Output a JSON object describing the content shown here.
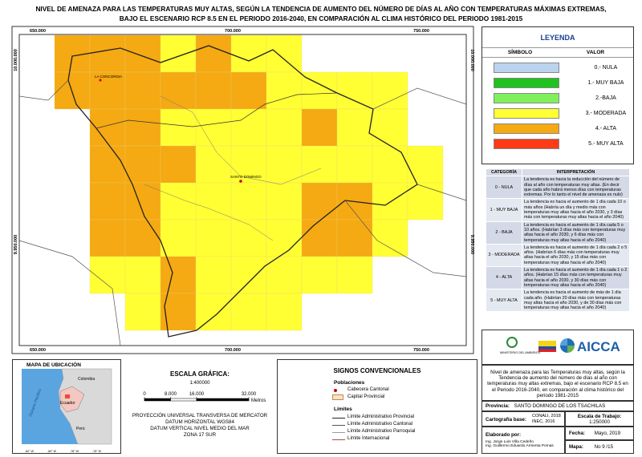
{
  "header": {
    "title_lines": [
      "NIVEL DE AMENAZA PARA LAS TEMPERATURAS MUY ALTAS, SEGÚN LA TENDENCIA DE AUMENTO DEL NÚMERO DE DÍAS AL AÑO CON TEMPERATURAS MÁXIMAS EXTREMAS,",
      "BAJO EL ESCENARIO RCP 8.5 EN EL PERIODO 2016-2040, EN COMPARACIÓN AL CLIMA HISTÓRICO DEL PERIODO 1981-2015"
    ]
  },
  "map": {
    "easting_labels": [
      "650.000",
      "700.000",
      "750.000"
    ],
    "northing_labels": [
      "10.000.000",
      "9.950.000"
    ],
    "place_labels": [
      "LA CONCORDIA",
      "SANTO DOMINGO"
    ]
  },
  "legend": {
    "title": "LEYENDA",
    "headers": [
      "SÍMBOLO",
      "VALOR"
    ],
    "items": [
      {
        "label": "0.- NULA",
        "color": "#bcd3ee"
      },
      {
        "label": "1.- MUY BAJA",
        "color": "#1fc21f"
      },
      {
        "label": "2.-BAJA",
        "color": "#7ff05c"
      },
      {
        "label": "3.- MODERADA",
        "color": "#ffff33"
      },
      {
        "label": "4.- ALTA",
        "color": "#f5a912"
      },
      {
        "label": "5.- MUY ALTA",
        "color": "#ff3b17"
      }
    ]
  },
  "interpretation": {
    "headers": [
      "CATEGORÍA",
      "INTERPRETACIÓN"
    ],
    "rows": [
      [
        "0 - NULA",
        "La tendencia es hacia la reducción del número de días al año con temperaturas muy altas. (En decir que cada año habrá menos días con temperaturas extremas. Por lo tanto el nivel de amenaza es nulo)"
      ],
      [
        "1 - MUY BAJA",
        "La tendencia es hacia el aumento de 1 día cada 10 o más años (Habría un día y medio más con temperaturas muy altas hacia el año 2030, y 3 días más con temperaturas muy altas hacia el año 2040)"
      ],
      [
        "2 - BAJA",
        "La tendencia es hacia el aumento de 1 día cada 5 o 10 años. (Habrían 3 días más con temperaturas muy altas hacia el año 2030, y 6 días más con temperaturas muy altas hacia el año 2040)"
      ],
      [
        "3 - MODERADA",
        "La tendencia es hacia el aumento de 1 día cada 2 o 5 años. (Habrían 6 días más con temperaturas muy altas hacia el año 2030, y 15 días más con temperaturas muy altas hacia el año 2040)"
      ],
      [
        "4 - ALTA",
        "La tendencia es hacia el aumento de 1 día cada 1 o 2 años. (Habrían 15 días más con temperaturas muy altas hacia el año 2030, y 30 días más con temperaturas muy altas hacia el año 2040)"
      ],
      [
        "5 - MUY ALTA",
        "La tendencia es hacia el aumento de más de 1 día cada año. (Habrían 20 días más con temperaturas muy altas hacia el año 2030, y de 30 días más con temperaturas muy altas hacia el año 2040)"
      ]
    ]
  },
  "location_map": {
    "title": "MAPA DE UBICACIÓN",
    "longitudes": [
      "-82° W",
      "-80° W",
      "-78° W",
      "-76° W"
    ],
    "labels": [
      "Colombia",
      "Ecuador",
      "Perú",
      "Oceano Pacifico"
    ]
  },
  "scale": {
    "title": "ESCALA GRÁFICA:",
    "ratio": "1:400000",
    "ticks": [
      0,
      {
        "value": 8000,
        "label": "8.000"
      },
      {
        "value": 16000,
        "label": "16.000"
      },
      {
        "value": 32000,
        "label": "32.000"
      }
    ],
    "unit": "Metros",
    "projection_lines": [
      "PROYECCIÓN UNIVERSAL TRANSVERSA DE MERCATOR",
      "DATUM HORIZONTAL WGS84",
      "DATUM VERTICAL NIVEL MEDIO DEL MAR",
      "ZONA 17 SUR"
    ]
  },
  "signs": {
    "title": "SIGNOS CONVENCIONALES",
    "populations_title": "Poblaciones",
    "populations": [
      "Cabecera Cantonal",
      "Capital Provincial"
    ],
    "limits_title": "Límites",
    "limits": [
      "Límite Administrativo Provincial",
      "Límite Administrativo Cantonal",
      "Límite Administrativo Parroquial",
      "Límite Internacional"
    ]
  },
  "info": {
    "logo_small": "MINISTERIO DEL AMBIENTE",
    "logo": "AICCA",
    "description": "Nivel de amenaza para las Temperaturas muy altas, según la Tendencia de aumento del número de días al año con temperaturas muy altas extremas, bajo el escenario RCP 8.5 en el Periodo 2016-2040, en comparación al clima histórico del periodo 1981-2015",
    "province_label": "Provincia:",
    "province": "SANTO DOMINGO DE LOS TSACHILAS",
    "base_label": "Cartografía base:",
    "base": [
      "CONALI, 2018",
      "INEC, 2016"
    ],
    "scale_label": "Escala de Trabajo:",
    "scale": "1:250000",
    "author_label": "Elaborado por:",
    "authors": [
      "Ing. Jorge Luis Villa Cedeño",
      "Ing. Guillermo Eduardo Armenta Pomas"
    ],
    "date_label": "Fecha:",
    "date": "Mayo, 2019",
    "map_label": "Mapa:",
    "map_number": "No 9 /15"
  }
}
